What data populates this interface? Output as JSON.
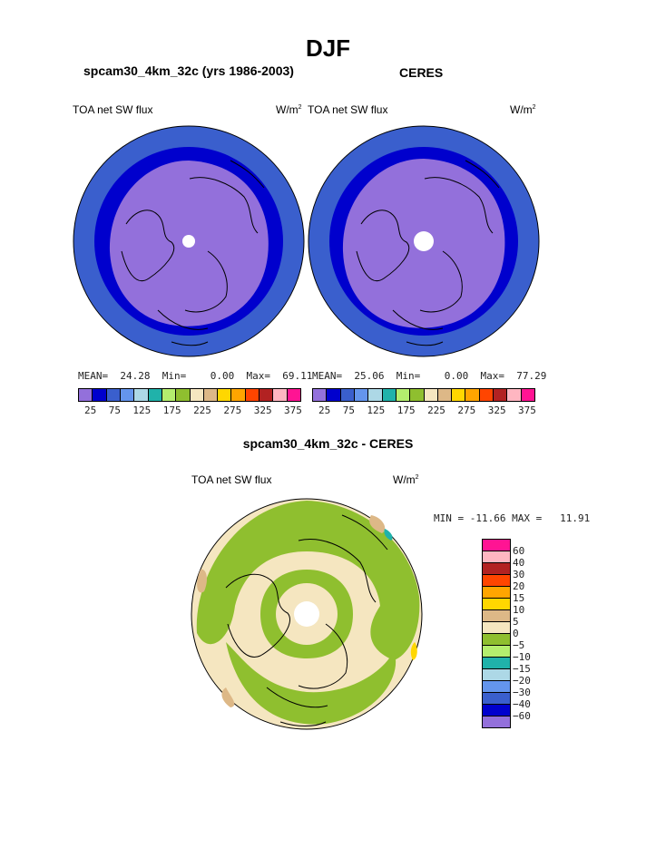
{
  "season": "DJF",
  "model_title": "spcam30_4km_32c (yrs 1986-2003)",
  "obs_title": "CERES",
  "variable": "TOA net SW flux",
  "units_base": "W/m",
  "units_exp": "2",
  "model_stats": {
    "mean_label": "MEAN=",
    "mean": "24.28",
    "min_label": "Min=",
    "min": "0.00",
    "max_label": "Max=",
    "max": "69.11"
  },
  "obs_stats": {
    "mean_label": "MEAN=",
    "mean": "25.06",
    "min_label": "Min=",
    "min": "0.00",
    "max_label": "Max=",
    "max": "77.29"
  },
  "abs_colorbar": {
    "colors": [
      "#9370db",
      "#0000cd",
      "#3a5fcd",
      "#6495ed",
      "#add8e6",
      "#20b2aa",
      "#b4ee6e",
      "#8fbf2f",
      "#f5e6c0",
      "#ddb887",
      "#ffd700",
      "#ffa500",
      "#ff4500",
      "#b22222",
      "#ffb6c1",
      "#ff1493"
    ],
    "tick_labels": [
      "25",
      "75",
      "125",
      "175",
      "225",
      "275",
      "325",
      "375"
    ]
  },
  "diff_title": "spcam30_4km_32c - CERES",
  "diff_stats": {
    "min_label": "MIN =",
    "min": "-11.66",
    "max_label": "MAX =",
    "max": "11.91"
  },
  "diff_colorbar": {
    "colors": [
      "#ff1493",
      "#ffb6c1",
      "#b22222",
      "#ff4500",
      "#ffa500",
      "#ffd700",
      "#ddb887",
      "#f5e6c0",
      "#8fbf2f",
      "#b4ee6e",
      "#20b2aa",
      "#add8e6",
      "#6495ed",
      "#3a5fcd",
      "#0000cd",
      "#9370db"
    ],
    "tick_labels": [
      "60",
      "40",
      "30",
      "20",
      "15",
      "10",
      "5",
      "0",
      "−5",
      "−10",
      "−15",
      "−20",
      "−30",
      "−40",
      "−60"
    ]
  }
}
